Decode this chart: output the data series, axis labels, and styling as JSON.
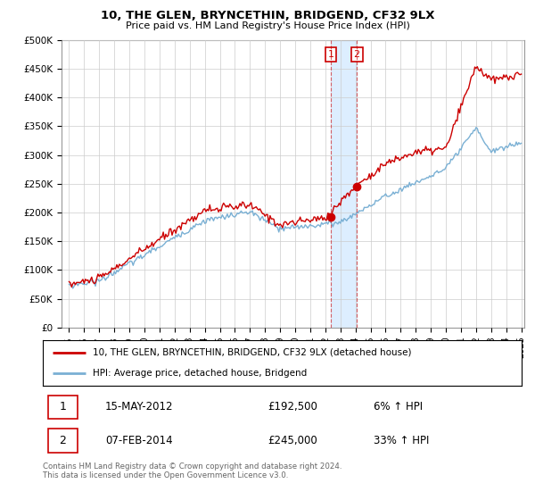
{
  "title": "10, THE GLEN, BRYNCETHIN, BRIDGEND, CF32 9LX",
  "subtitle": "Price paid vs. HM Land Registry's House Price Index (HPI)",
  "ylim": [
    0,
    500000
  ],
  "yticks": [
    0,
    50000,
    100000,
    150000,
    200000,
    250000,
    300000,
    350000,
    400000,
    450000,
    500000
  ],
  "ytick_labels": [
    "£0",
    "£50K",
    "£100K",
    "£150K",
    "£200K",
    "£250K",
    "£300K",
    "£350K",
    "£400K",
    "£450K",
    "£500K"
  ],
  "sale1_date": 2012.37,
  "sale1_price": 192500,
  "sale1_label": "1",
  "sale2_date": 2014.09,
  "sale2_price": 245000,
  "sale2_label": "2",
  "line_color_property": "#cc0000",
  "line_color_hpi": "#7ab0d4",
  "legend_property": "10, THE GLEN, BRYNCETHIN, BRIDGEND, CF32 9LX (detached house)",
  "legend_hpi": "HPI: Average price, detached house, Bridgend",
  "table_row1_num": "1",
  "table_row1_date": "15-MAY-2012",
  "table_row1_price": "£192,500",
  "table_row1_hpi": "6% ↑ HPI",
  "table_row2_num": "2",
  "table_row2_date": "07-FEB-2014",
  "table_row2_price": "£245,000",
  "table_row2_hpi": "33% ↑ HPI",
  "footnote": "Contains HM Land Registry data © Crown copyright and database right 2024.\nThis data is licensed under the Open Government Licence v3.0.",
  "background_color": "#ffffff",
  "grid_color": "#cccccc",
  "shade_color": "#ddeeff"
}
